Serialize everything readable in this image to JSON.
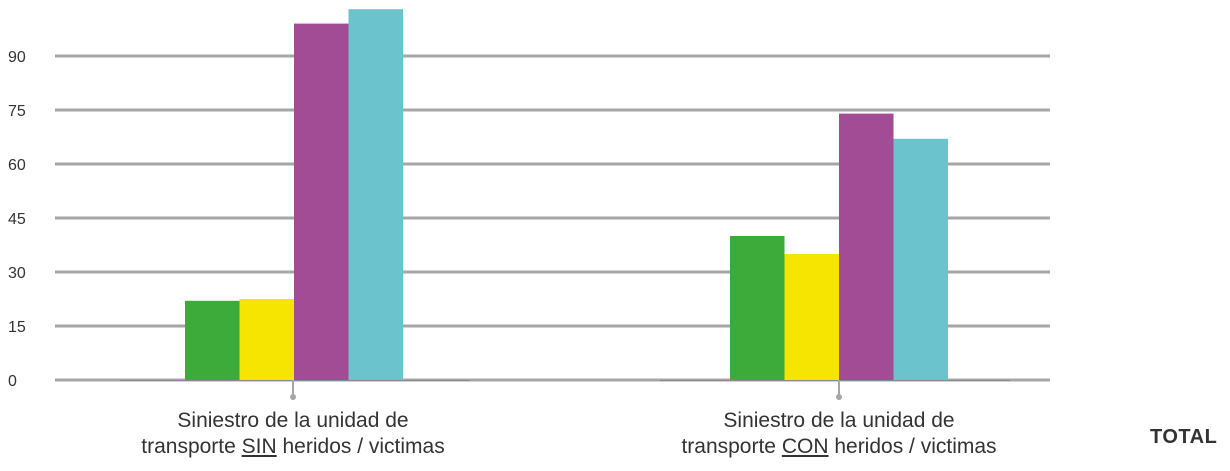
{
  "chart_data": {
    "type": "bar",
    "categories": [
      {
        "line1": "Siniestro de la unidad de",
        "line2_pre": "transporte ",
        "line2_u": "SIN",
        "line2_post": " heridos / victimas"
      },
      {
        "line1": "Siniestro de la unidad de",
        "line2_pre": "transporte ",
        "line2_u": "CON",
        "line2_post": " heridos / victimas"
      }
    ],
    "series": [
      {
        "color": "#3cab3a",
        "values": [
          22,
          40
        ]
      },
      {
        "color": "#f6e500",
        "values": [
          22.5,
          35
        ]
      },
      {
        "color": "#a34c96",
        "values": [
          99,
          74
        ]
      },
      {
        "color": "#6bc4cd",
        "values": [
          103,
          67
        ]
      }
    ],
    "y_ticks": [
      0,
      15,
      30,
      45,
      60,
      75,
      90
    ],
    "ylim": [
      0,
      103
    ],
    "grid": true,
    "extra_label": "TOTAL"
  }
}
